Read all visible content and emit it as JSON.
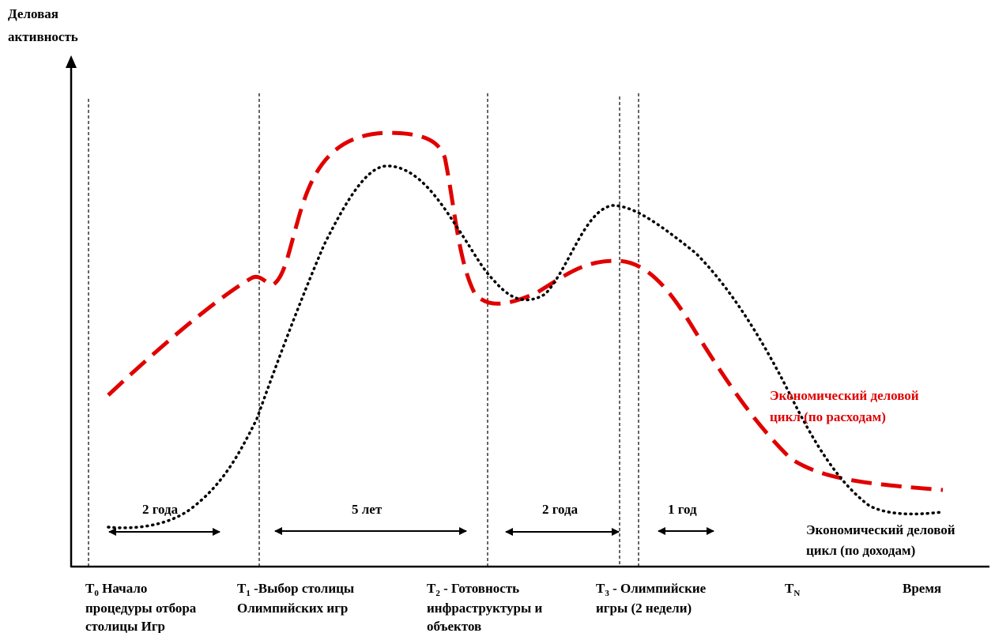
{
  "y_axis_label": [
    "Деловая",
    "активность"
  ],
  "x_axis_label": "Время",
  "milestones": {
    "t0": {
      "symbol": "T",
      "sub": "0",
      "lines": [
        "Начало",
        "процедуры отбора",
        "столицы Игр"
      ]
    },
    "t1": {
      "symbol": "T",
      "sub": "1",
      "lines": [
        " -Выбор столицы",
        "Олимпийских игр"
      ]
    },
    "t2": {
      "symbol": "T",
      "sub": "2",
      "lines": [
        " - Готовность",
        "инфраструктуры и",
        "объектов"
      ]
    },
    "t3": {
      "symbol": "T",
      "sub": "3",
      "lines": [
        " - Олимпийские",
        "игры (2 недели)"
      ]
    },
    "tn": {
      "symbol": "T",
      "sub": "N"
    }
  },
  "durations": {
    "d1": "2 года",
    "d2": "5 лет",
    "d3": "2 года",
    "d4": "1 год"
  },
  "curves": {
    "spending": {
      "label": [
        "Экономический деловой",
        "цикл (по расходам)"
      ],
      "color": "#e00000",
      "style": "dashed"
    },
    "income": {
      "label": [
        "Экономический деловой",
        "цикл (по доходам)"
      ],
      "color": "#000000",
      "style": "dotted"
    }
  }
}
